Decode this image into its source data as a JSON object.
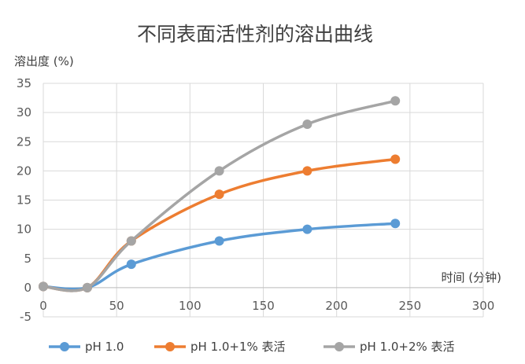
{
  "chart_data": {
    "type": "line",
    "title": "不同表面活性剂的溶出曲线",
    "xlabel": "时间 (分钟)",
    "ylabel": "溶出度 (%)",
    "xlim": [
      0,
      300
    ],
    "ylim": [
      -5,
      35
    ],
    "xticks": [
      "0",
      "50",
      "100",
      "150",
      "200",
      "250",
      "300"
    ],
    "yticks": [
      "-5",
      "0",
      "5",
      "10",
      "15",
      "20",
      "25",
      "30",
      "35"
    ],
    "x": [
      0,
      30,
      60,
      120,
      180,
      240
    ],
    "series": [
      {
        "name": "pH 1.0",
        "color": "#5b9bd5",
        "values": [
          0.2,
          0,
          4,
          8,
          10,
          11
        ]
      },
      {
        "name": "pH 1.0+1% 表活",
        "color": "#ed7d31",
        "values": [
          0.2,
          0,
          8,
          16,
          20,
          22
        ]
      },
      {
        "name": "pH 1.0+2% 表活",
        "color": "#a5a5a5",
        "values": [
          0.2,
          0,
          8,
          20,
          28,
          32
        ]
      }
    ],
    "grid": true,
    "legend": "bottom"
  }
}
